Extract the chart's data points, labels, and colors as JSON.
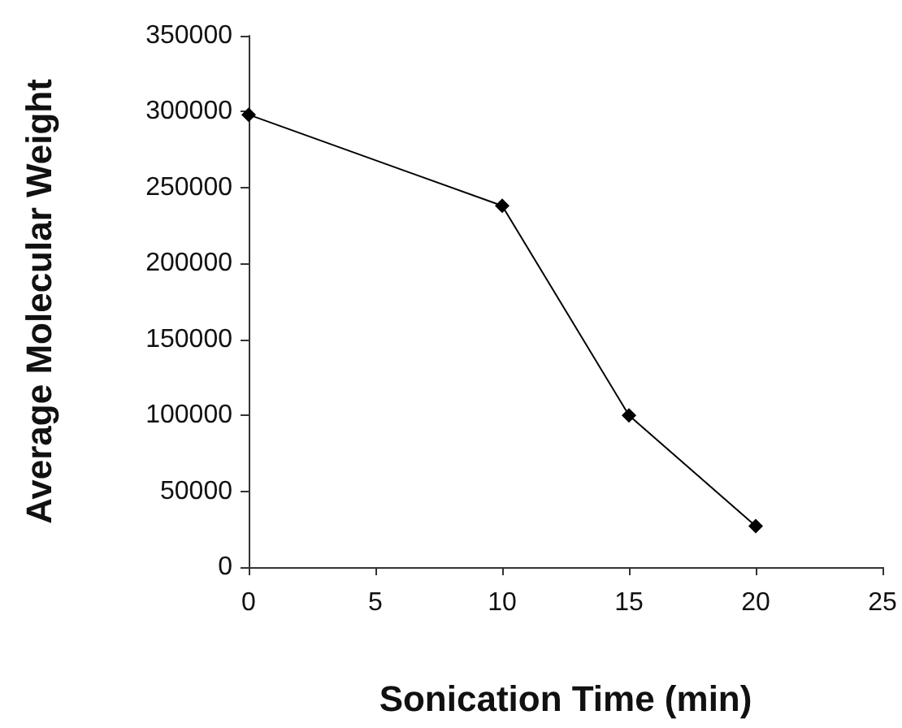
{
  "chart_data": {
    "type": "line",
    "xlabel": "Sonication Time (min)",
    "ylabel": "Average Molecular Weight",
    "x": [
      0,
      10,
      15,
      20
    ],
    "series": [
      {
        "color": "#000000",
        "values": [
          298000,
          238000,
          100000,
          27000
        ]
      }
    ],
    "xlim": [
      0,
      25
    ],
    "xticks": [
      0,
      5,
      10,
      15,
      20,
      25
    ],
    "ylim": [
      0,
      350000
    ],
    "yticks": [
      0,
      50000,
      100000,
      150000,
      200000,
      250000,
      300000,
      350000
    ],
    "grid": false,
    "marker": "diamond",
    "line_style": "solid"
  }
}
